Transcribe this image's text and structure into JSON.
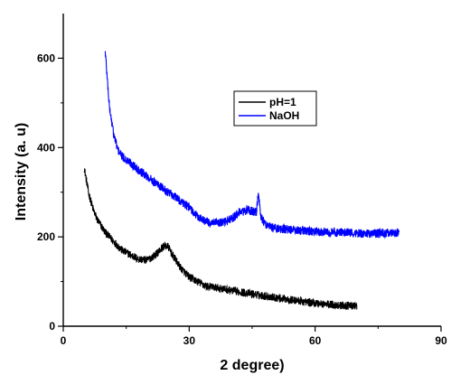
{
  "chart_data": {
    "type": "line",
    "xlabel": "2 degree)",
    "ylabel": "Intensity (a. u)",
    "xlim": [
      0,
      90
    ],
    "ylim": [
      0,
      700
    ],
    "xticks": [
      0,
      30,
      60,
      90
    ],
    "yticks": [
      0,
      200,
      400,
      600
    ],
    "xtick_labels": [
      "0",
      "30",
      "60",
      "90"
    ],
    "ytick_labels": [
      "0",
      "200",
      "400",
      "600"
    ],
    "grid": false,
    "legend_position": "top-right",
    "series": [
      {
        "name": "pH=1",
        "color": "#000000",
        "x": [
          5,
          6,
          7,
          8,
          10,
          12,
          14,
          16,
          18,
          20,
          22,
          24,
          25,
          26,
          28,
          30,
          34,
          40,
          45,
          50,
          55,
          60,
          65,
          70
        ],
        "y": [
          355,
          300,
          265,
          240,
          210,
          190,
          170,
          160,
          150,
          148,
          160,
          180,
          178,
          160,
          130,
          110,
          90,
          80,
          72,
          65,
          58,
          52,
          47,
          45
        ]
      },
      {
        "name": "NaOH",
        "color": "#0000ff",
        "x": [
          10,
          11,
          12,
          13,
          14,
          16,
          18,
          20,
          22,
          25,
          28,
          30,
          32,
          35,
          38,
          40,
          42,
          44,
          46,
          46.5,
          47,
          48,
          50,
          55,
          60,
          65,
          70,
          75,
          80
        ],
        "y": [
          615,
          490,
          430,
          395,
          380,
          365,
          350,
          335,
          320,
          300,
          280,
          265,
          245,
          230,
          232,
          240,
          255,
          260,
          255,
          300,
          245,
          230,
          220,
          215,
          212,
          210,
          208,
          208,
          210
        ]
      }
    ]
  }
}
